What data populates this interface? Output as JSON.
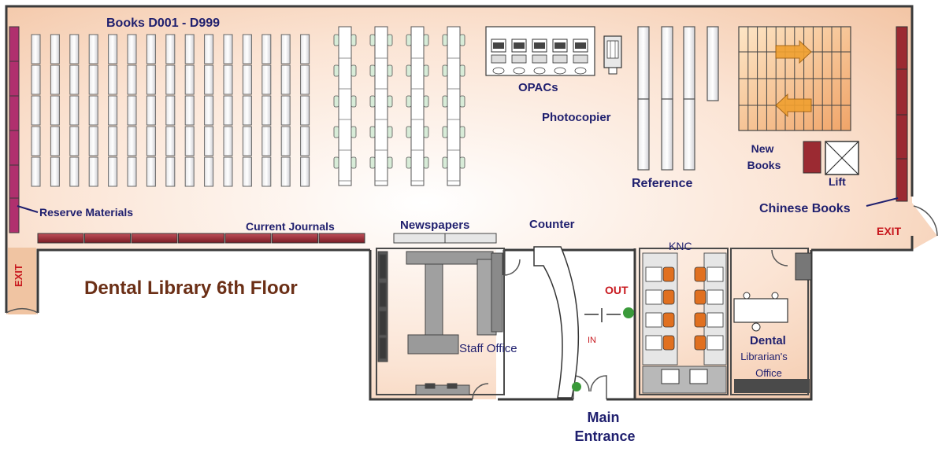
{
  "title": "Dental Library 6th Floor",
  "labels": {
    "books": "Books D001 - D999",
    "reserve": "Reserve Materials",
    "current_journals": "Current Journals",
    "newspapers": "Newspapers",
    "counter": "Counter",
    "opacs": "OPACs",
    "photocopier": "Photocopier",
    "reference": "Reference",
    "new_books": "New Books",
    "lift": "Lift",
    "chinese_books": "Chinese Books",
    "exit_right": "EXIT",
    "exit_left": "EXIT",
    "knc": "KNC",
    "out": "OUT",
    "in": "IN",
    "staff_office": "Staff Office",
    "dental": "Dental",
    "librarians_office": "Librarian's Office",
    "main_entrance": "Main Entrance"
  },
  "colors": {
    "wall": "#3a3a3a",
    "floor_warm": "#f3c8a6",
    "reserve_shelf": "#b0306e",
    "journal_shelf": "#9b2a32",
    "label_text": "#1f1f6e",
    "title_text": "#6b2f16",
    "exit_text": "#c8191f",
    "chair_orange": "#e07020",
    "plant_green": "#3a9a3a"
  }
}
